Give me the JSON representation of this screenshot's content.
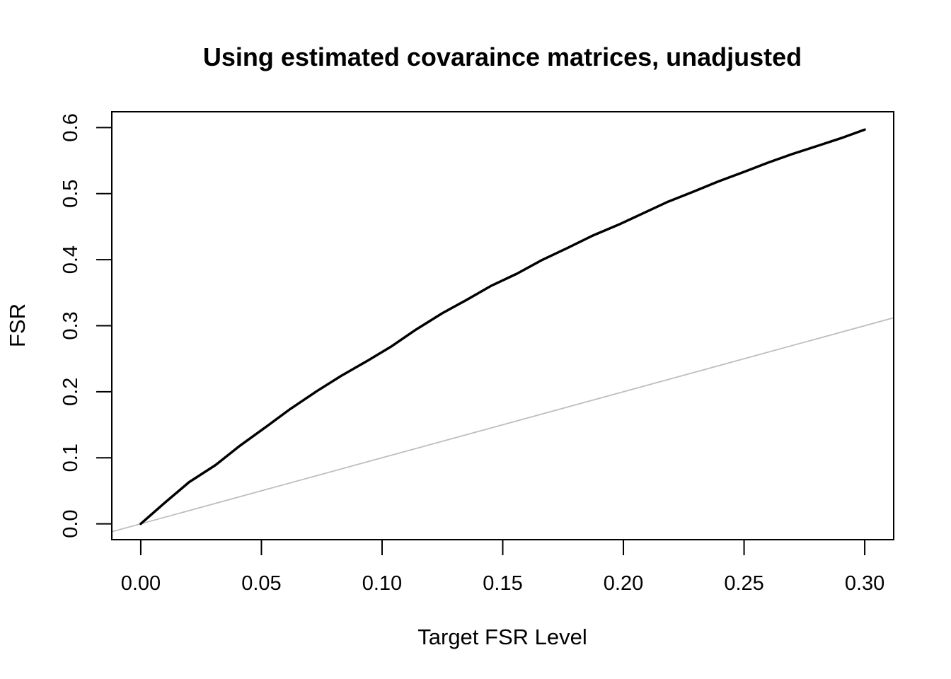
{
  "chart_data": {
    "type": "line",
    "title": "Using estimated covaraince matrices, unadjusted",
    "xlabel": "Target FSR Level",
    "ylabel": "FSR",
    "xlim": [
      -0.012,
      0.312
    ],
    "ylim": [
      -0.024,
      0.624
    ],
    "x_ticks": [
      "0.00",
      "0.05",
      "0.10",
      "0.15",
      "0.20",
      "0.25",
      "0.30"
    ],
    "y_ticks": [
      "0.0",
      "0.1",
      "0.2",
      "0.3",
      "0.4",
      "0.5",
      "0.6"
    ],
    "grid": false,
    "legend": "none",
    "series": [
      {
        "color": "#000000",
        "x": [
          0.0,
          0.01,
          0.02,
          0.031,
          0.041,
          0.052,
          0.062,
          0.073,
          0.083,
          0.094,
          0.104,
          0.114,
          0.125,
          0.135,
          0.145,
          0.156,
          0.166,
          0.177,
          0.187,
          0.198,
          0.208,
          0.218,
          0.229,
          0.239,
          0.25,
          0.26,
          0.27,
          0.281,
          0.291,
          0.3
        ],
        "y": [
          0.0,
          0.032,
          0.063,
          0.089,
          0.118,
          0.147,
          0.174,
          0.201,
          0.224,
          0.247,
          0.269,
          0.294,
          0.319,
          0.339,
          0.36,
          0.379,
          0.399,
          0.418,
          0.436,
          0.453,
          0.47,
          0.487,
          0.503,
          0.518,
          0.533,
          0.547,
          0.56,
          0.573,
          0.585,
          0.597
        ]
      },
      {
        "color": "#bebebe",
        "x": [
          -0.012,
          0.312
        ],
        "y": [
          -0.012,
          0.312
        ]
      }
    ]
  }
}
